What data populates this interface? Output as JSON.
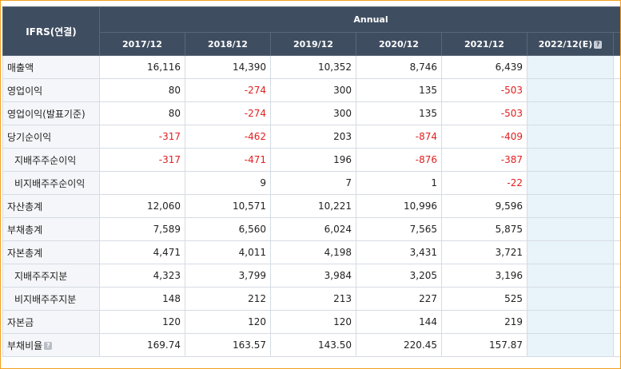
{
  "table": {
    "corner_label": "IFRS(연결)",
    "group_label": "Annual",
    "columns": [
      "2017/12",
      "2018/12",
      "2019/12",
      "2020/12",
      "2021/12",
      "2022/12(E)"
    ],
    "rows": [
      {
        "label": "매출액",
        "indent": false,
        "help": false,
        "values": [
          "16,116",
          "14,390",
          "10,352",
          "8,746",
          "6,439",
          ""
        ]
      },
      {
        "label": "영업이익",
        "indent": false,
        "help": false,
        "values": [
          "80",
          "-274",
          "300",
          "135",
          "-503",
          ""
        ]
      },
      {
        "label": "영업이익(발표기준)",
        "indent": false,
        "help": false,
        "values": [
          "80",
          "-274",
          "300",
          "135",
          "-503",
          ""
        ]
      },
      {
        "label": "당기순이익",
        "indent": false,
        "help": false,
        "values": [
          "-317",
          "-462",
          "203",
          "-874",
          "-409",
          ""
        ]
      },
      {
        "label": "지배주주순이익",
        "indent": true,
        "help": false,
        "values": [
          "-317",
          "-471",
          "196",
          "-876",
          "-387",
          ""
        ]
      },
      {
        "label": "비지배주주순이익",
        "indent": true,
        "help": false,
        "values": [
          "",
          "9",
          "7",
          "1",
          "-22",
          ""
        ]
      },
      {
        "label": "자산총계",
        "indent": false,
        "help": false,
        "values": [
          "12,060",
          "10,571",
          "10,221",
          "10,996",
          "9,596",
          ""
        ]
      },
      {
        "label": "부채총계",
        "indent": false,
        "help": false,
        "values": [
          "7,589",
          "6,560",
          "6,024",
          "7,565",
          "5,875",
          ""
        ]
      },
      {
        "label": "자본총계",
        "indent": false,
        "help": false,
        "values": [
          "4,471",
          "4,011",
          "4,198",
          "3,431",
          "3,721",
          ""
        ]
      },
      {
        "label": "지배주주지분",
        "indent": true,
        "help": false,
        "values": [
          "4,323",
          "3,799",
          "3,984",
          "3,205",
          "3,196",
          ""
        ]
      },
      {
        "label": "비지배주주지분",
        "indent": true,
        "help": false,
        "values": [
          "148",
          "212",
          "213",
          "227",
          "525",
          ""
        ]
      },
      {
        "label": "자본금",
        "indent": false,
        "help": false,
        "values": [
          "120",
          "120",
          "120",
          "144",
          "219",
          ""
        ]
      },
      {
        "label": "부채비율",
        "indent": false,
        "help": true,
        "values": [
          "169.74",
          "163.57",
          "143.50",
          "220.45",
          "157.87",
          ""
        ]
      }
    ]
  },
  "colors": {
    "header_bg": "#3f4d60",
    "negative": "#e02020",
    "estimate_bg": "#e8f4fa",
    "frame_border": "#f0a020"
  },
  "icons": {
    "help": "help-icon"
  }
}
